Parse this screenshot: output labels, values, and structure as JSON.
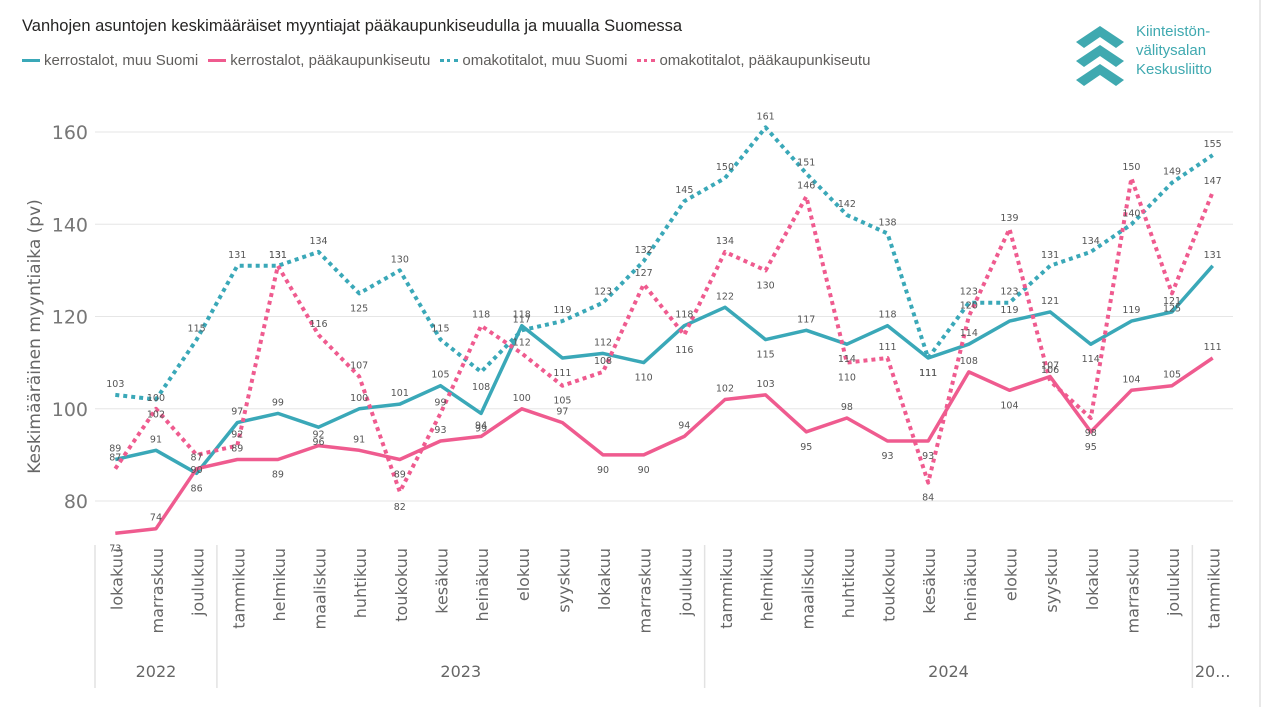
{
  "chart_data": {
    "type": "line",
    "title": "Vanhojen asuntojen keskimääräiset myyntiajat pääkaupunkiseudulla ja muualla Suomessa",
    "xlabel": "",
    "ylabel": "Keskimääräinen myyntiaika (pv)",
    "ylim": [
      70,
      164
    ],
    "yticks": [
      80,
      100,
      120,
      140,
      160
    ],
    "grid": true,
    "legend_position": "top-left",
    "categories": [
      "lokakuu",
      "marraskuu",
      "joulukuu",
      "tammikuu",
      "helmikuu",
      "maaliskuu",
      "huhtikuu",
      "toukokuu",
      "kesäkuu",
      "heinäkuu",
      "elokuu",
      "syyskuu",
      "lokakuu",
      "marraskuu",
      "joulukuu",
      "tammikuu",
      "helmikuu",
      "maaliskuu",
      "huhtikuu",
      "toukokuu",
      "kesäkuu",
      "heinäkuu",
      "elokuu",
      "syyskuu",
      "lokakuu",
      "marraskuu",
      "joulukuu",
      "tammikuu"
    ],
    "year_groups": [
      {
        "label": "2022",
        "count": 3
      },
      {
        "label": "2023",
        "count": 12
      },
      {
        "label": "2024",
        "count": 12
      },
      {
        "label": "20...",
        "count": 1
      }
    ],
    "series": [
      {
        "name": "kerrostalot, muu Suomi",
        "color": "#3aa8b8",
        "style": "solid",
        "values": [
          89,
          91,
          86,
          97,
          99,
          96,
          100,
          101,
          105,
          99,
          118,
          111,
          112,
          110,
          118,
          122,
          115,
          117,
          114,
          118,
          111,
          114,
          119,
          121,
          114,
          119,
          121,
          131
        ]
      },
      {
        "name": "kerrostalot, pääkaupunkiseutu",
        "color": "#ef5b8f",
        "style": "solid",
        "values": [
          73,
          74,
          87,
          89,
          89,
          92,
          91,
          89,
          93,
          94,
          100,
          97,
          90,
          90,
          94,
          102,
          103,
          95,
          98,
          93,
          93,
          108,
          104,
          107,
          95,
          104,
          105,
          111
        ]
      },
      {
        "name": "omakotitalot, muu Suomi",
        "color": "#3aa8b8",
        "style": "dotted",
        "values": [
          103,
          102,
          115,
          131,
          131,
          134,
          125,
          130,
          115,
          108,
          117,
          119,
          123,
          132,
          145,
          150,
          161,
          151,
          142,
          138,
          111,
          123,
          123,
          131,
          134,
          140,
          149,
          155
        ]
      },
      {
        "name": "omakotitalot, pääkaupunkiseutu",
        "color": "#ef5b8f",
        "style": "dotted",
        "values": [
          87,
          100,
          90,
          92,
          131,
          116,
          107,
          82,
          99,
          118,
          112,
          105,
          108,
          127,
          116,
          134,
          130,
          146,
          110,
          111,
          84,
          120,
          139,
          106,
          98,
          150,
          125,
          147
        ]
      }
    ]
  },
  "logo": {
    "lines": [
      "Kiinteistön-",
      "välitysalan",
      "Keskusliitto"
    ],
    "color": "#3fa9b0"
  }
}
